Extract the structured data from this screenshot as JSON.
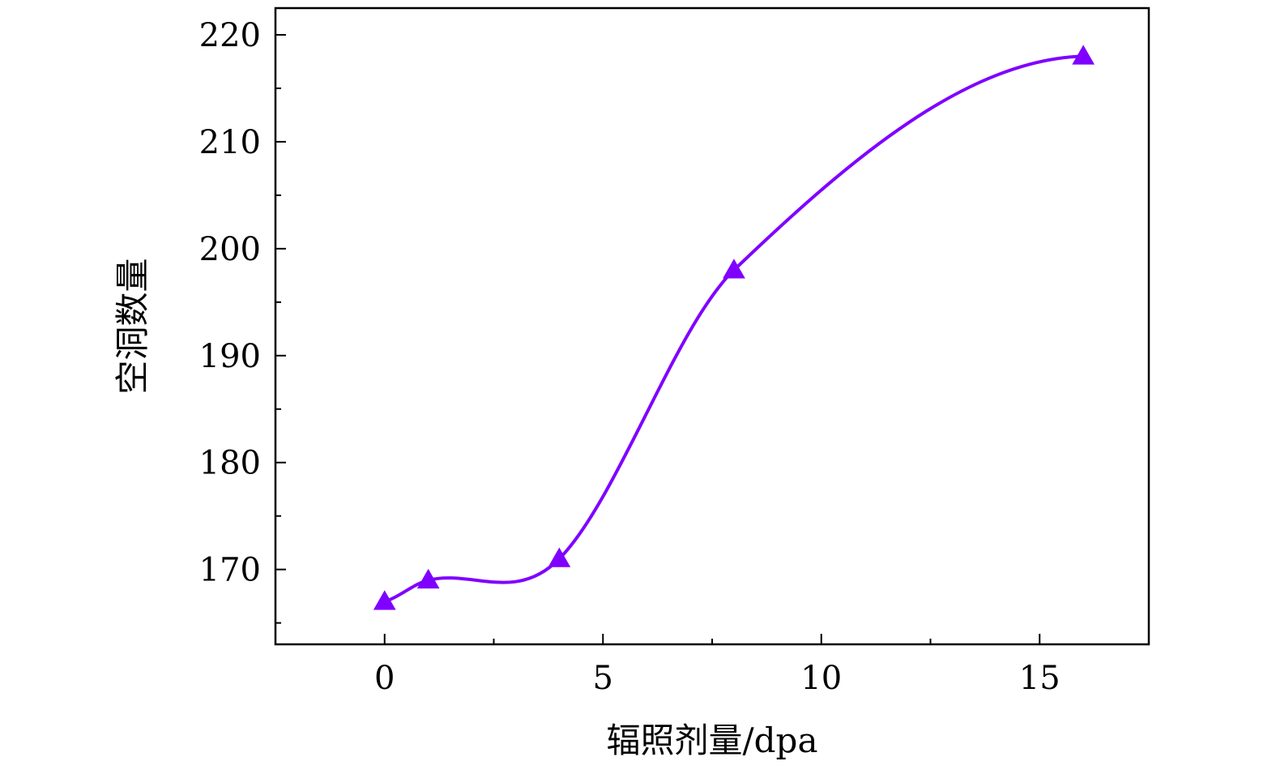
{
  "chart_data": {
    "type": "line",
    "xlabel": "辐照剂量/dpa",
    "ylabel": "空洞数量",
    "xlim": [
      -2.5,
      17.5
    ],
    "ylim": [
      163,
      222.5
    ],
    "x_ticks": [
      0,
      5,
      10,
      15
    ],
    "y_ticks": [
      170,
      180,
      190,
      200,
      210,
      220
    ],
    "x_minor_step": 2.5,
    "y_minor_step": 5,
    "grid": false,
    "smooth": true,
    "marker": "triangle",
    "color": "#7f00ff",
    "series": [
      {
        "x": [
          0,
          1,
          4,
          8,
          16
        ],
        "y": [
          167,
          169,
          171,
          198,
          218
        ]
      }
    ]
  }
}
